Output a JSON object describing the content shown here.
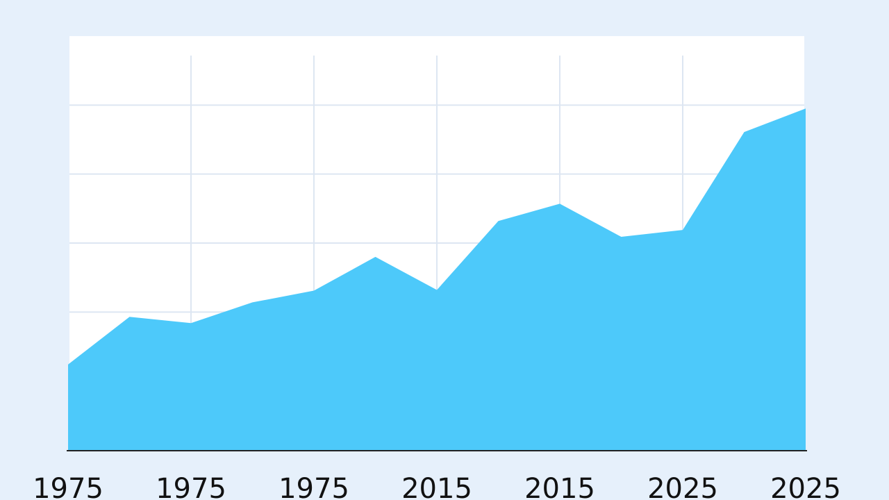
{
  "chart_data": {
    "type": "area",
    "categories": [
      "1975",
      null,
      "1975",
      null,
      "1975",
      null,
      "2015",
      null,
      "2015",
      null,
      "2025",
      null,
      "2025"
    ],
    "values": [
      1.24,
      1.93,
      1.84,
      2.14,
      2.31,
      2.8,
      2.32,
      3.32,
      3.57,
      3.09,
      3.19,
      4.61,
      4.95
    ],
    "color": "#4dc9fa",
    "ylim": [
      0,
      6
    ],
    "yticks": [
      1,
      2,
      3,
      4,
      5
    ],
    "grid": true
  }
}
